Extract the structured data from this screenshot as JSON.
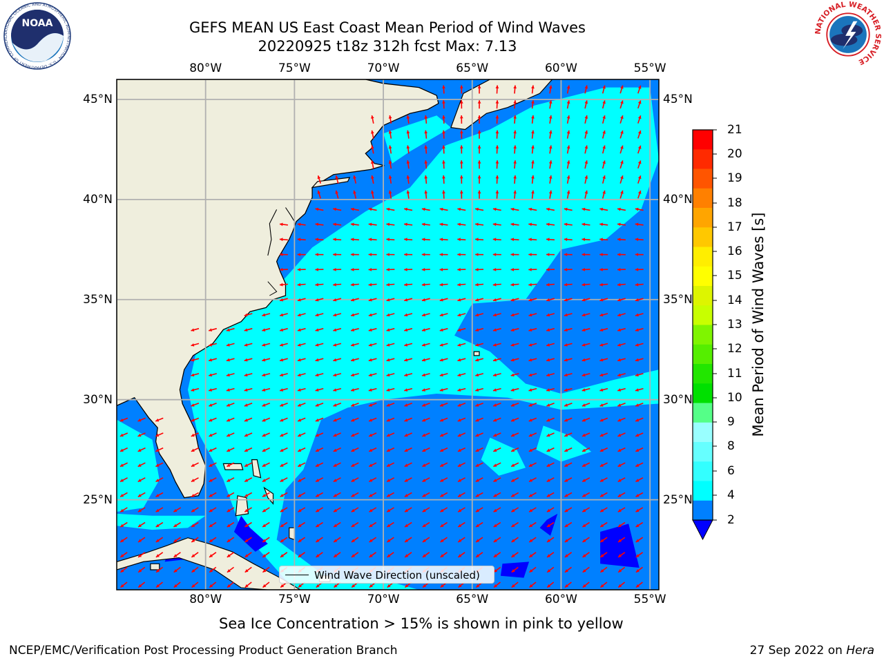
{
  "title": {
    "line1": "GEFS MEAN US East Coast Mean Period of Wind Waves",
    "line2": "20220925 t18z 312h fcst   Max: 7.13"
  },
  "map": {
    "lon_range": [
      -85,
      -54.5
    ],
    "lat_range": [
      20.5,
      46
    ],
    "lon_ticks": [
      "80°W",
      "75°W",
      "70°W",
      "65°W",
      "60°W",
      "55°W"
    ],
    "lat_ticks": [
      "45°N",
      "40°N",
      "35°N",
      "30°N",
      "25°N"
    ],
    "land_color": "#efeedd",
    "grid_color": "#b0b0b0",
    "arrow_color": "#ff0000"
  },
  "colorbar": {
    "label": "Mean Period of Wind Waves [s]",
    "ticks": [
      "21",
      "20",
      "19",
      "18",
      "17",
      "16",
      "15",
      "14",
      "13",
      "12",
      "11",
      "10",
      "9",
      "8",
      "7",
      "6",
      "4",
      "2"
    ],
    "colors": [
      "#ff0000",
      "#ff2a00",
      "#ff5500",
      "#ff8000",
      "#ffa500",
      "#ffc800",
      "#ffee00",
      "#ffff00",
      "#ddf500",
      "#c8ff00",
      "#7ff500",
      "#55ee00",
      "#22e600",
      "#00e000",
      "#55ff88",
      "#99ffff",
      "#66ffff",
      "#33ffff",
      "#00ffff",
      "#0080ff"
    ],
    "under_color": "#0000ff"
  },
  "legend": {
    "label": "Wind Wave Direction (unscaled)"
  },
  "note": "Sea Ice Concentration > 15% is shown in pink to yellow",
  "footer": {
    "left": "NCEP/EMC/Verification Post Processing Product Generation Branch",
    "right_prefix": "27 Sep 2022 on ",
    "right_machine": "Hera"
  },
  "logos": {
    "noaa_text": "NOAA",
    "noaa_ring": "NATIONAL OCEANIC AND ATMOSPHERIC ADMINISTRATION · U.S. DEPARTMENT OF COMMERCE",
    "nws_ring": "NATIONAL WEATHER SERVICE"
  }
}
